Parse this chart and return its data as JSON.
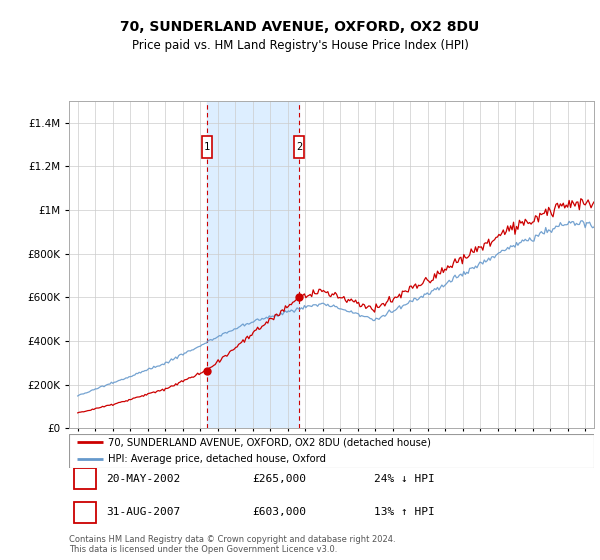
{
  "title": "70, SUNDERLAND AVENUE, OXFORD, OX2 8DU",
  "subtitle": "Price paid vs. HM Land Registry's House Price Index (HPI)",
  "legend_line1": "70, SUNDERLAND AVENUE, OXFORD, OX2 8DU (detached house)",
  "legend_line2": "HPI: Average price, detached house, Oxford",
  "annotation1_date": "20-MAY-2002",
  "annotation1_price": "£265,000",
  "annotation1_hpi": "24% ↓ HPI",
  "annotation2_date": "31-AUG-2007",
  "annotation2_price": "£603,000",
  "annotation2_hpi": "13% ↑ HPI",
  "footer": "Contains HM Land Registry data © Crown copyright and database right 2024.\nThis data is licensed under the Open Government Licence v3.0.",
  "house_color": "#cc0000",
  "hpi_color": "#6699cc",
  "highlight_color": "#ddeeff",
  "ann_box_color": "#cc0000",
  "ylim": [
    0,
    1500000
  ],
  "yticks": [
    0,
    200000,
    400000,
    600000,
    800000,
    1000000,
    1200000,
    1400000
  ],
  "purchase1_year": 2002.38,
  "purchase1_value": 265000,
  "purchase2_year": 2007.66,
  "purchase2_value": 603000,
  "xmin": 1995,
  "xmax": 2025
}
